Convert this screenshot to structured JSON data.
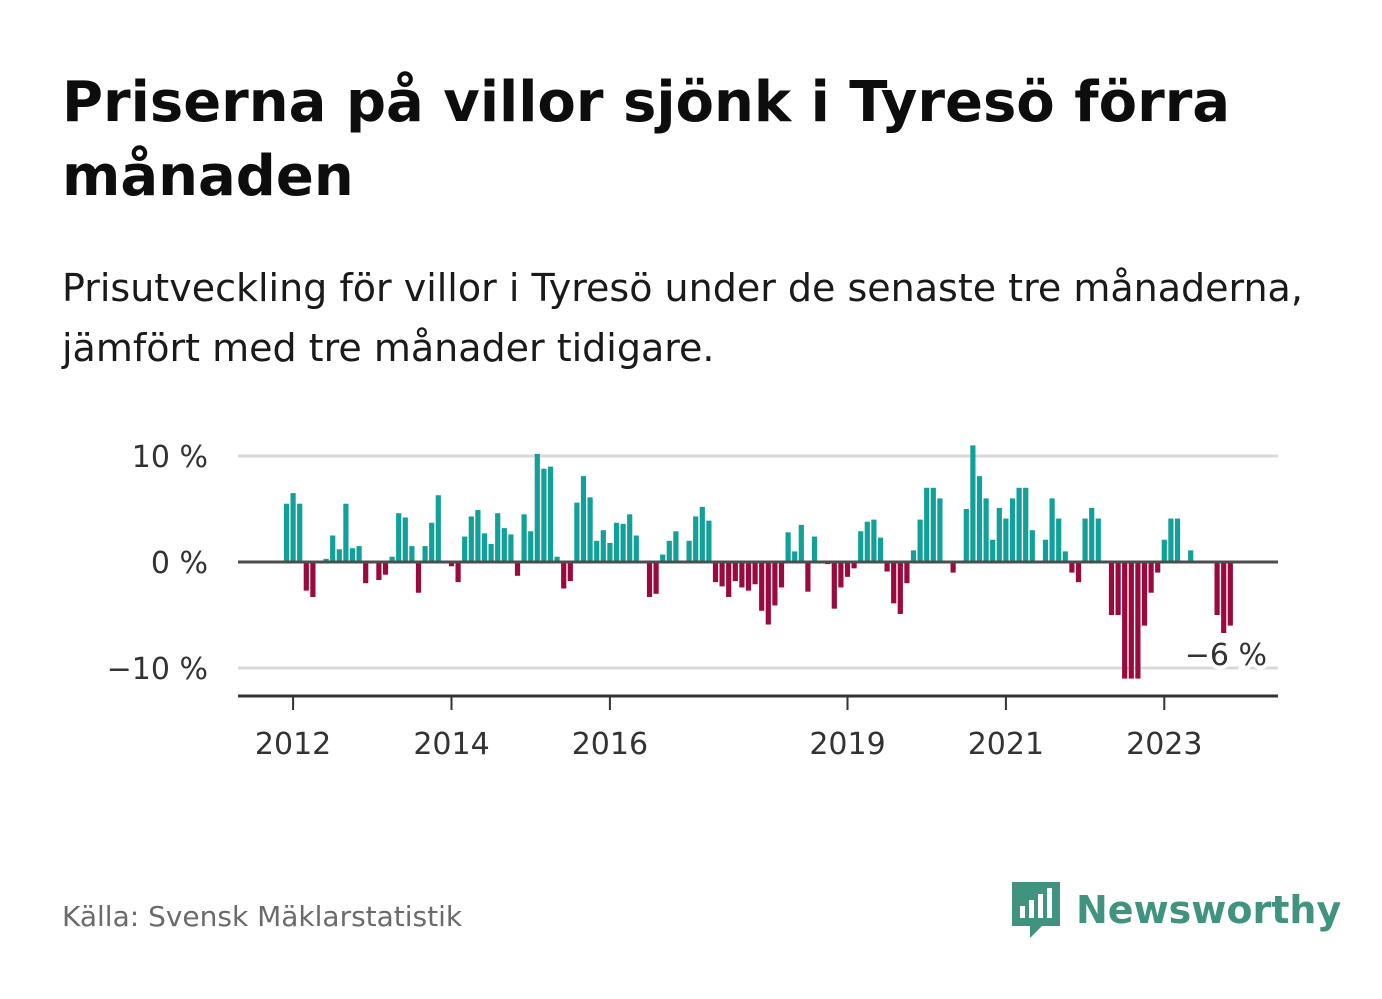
{
  "title": "Priserna på villor sjönk i Tyresö förra månaden",
  "subtitle": "Prisutveckling för villor i Tyresö under de senaste tre månaderna, jämfört med tre månader tidigare.",
  "source": "Källa: Svensk Mäklarstatistik",
  "brand": {
    "name": "Newsworthy",
    "icon": "newsworthy-logo-icon",
    "color": "#40937f"
  },
  "colors": {
    "positive": "#12a198",
    "negative": "#9b0a3e",
    "grid": "#d9d9d9",
    "axis": "#333333"
  },
  "chart_data": {
    "type": "bar",
    "y_unit": "%",
    "ylim": [
      -12.5,
      11
    ],
    "yticks": [
      {
        "value": 10,
        "label": "10 %"
      },
      {
        "value": 0,
        "label": "0 %"
      },
      {
        "value": -10,
        "label": "−10 %"
      }
    ],
    "xticks": [
      {
        "index": 1,
        "label": "2012"
      },
      {
        "index": 25,
        "label": "2014"
      },
      {
        "index": 49,
        "label": "2016"
      },
      {
        "index": 85,
        "label": "2019"
      },
      {
        "index": 109,
        "label": "2021"
      },
      {
        "index": 133,
        "label": "2023"
      }
    ],
    "values": [
      5.5,
      6.5,
      5.5,
      -2.7,
      -3.3,
      0,
      0.3,
      2.5,
      1.2,
      5.5,
      1.3,
      1.5,
      -2,
      0,
      -1.7,
      -1.2,
      0.5,
      4.6,
      4.2,
      1.5,
      -2.9,
      1.5,
      3.7,
      6.3,
      0,
      -0.4,
      -1.9,
      2.4,
      4.3,
      4.9,
      2.7,
      1.7,
      4.6,
      3.2,
      2.6,
      -1.3,
      4.5,
      2.9,
      10.2,
      8.8,
      9,
      0.5,
      -2.5,
      -1.8,
      5.6,
      8.1,
      6.1,
      2,
      3,
      1.8,
      3.7,
      3.6,
      4.5,
      2.5,
      0,
      -3.3,
      -3,
      0.7,
      2,
      2.9,
      0,
      2,
      4.3,
      5.2,
      3.9,
      -1.9,
      -2.3,
      -3.3,
      -1.8,
      -2.4,
      -2.7,
      -2.1,
      -4.6,
      -5.9,
      -4.1,
      -2.4,
      2.8,
      1,
      3.5,
      -2.8,
      2.4,
      0,
      -0.2,
      -4.4,
      -2.4,
      -1.4,
      -0.6,
      2.9,
      3.8,
      4,
      2.3,
      -0.9,
      -3.9,
      -4.9,
      -2,
      1.1,
      4,
      7,
      7,
      6,
      0,
      -1,
      0,
      5,
      11,
      8.1,
      6,
      2.1,
      5.1,
      4.1,
      6,
      7,
      7,
      3,
      0,
      2.1,
      6,
      4.1,
      1,
      -1,
      -1.9,
      4.1,
      5.1,
      4.1,
      0,
      -5,
      -5,
      -11,
      -11,
      -11,
      -6,
      -2.9,
      -1,
      2.1,
      4.1,
      4.1,
      0,
      1.1,
      0,
      0,
      0,
      -5,
      -6.7,
      -6
    ],
    "last_label": "−6 %"
  }
}
